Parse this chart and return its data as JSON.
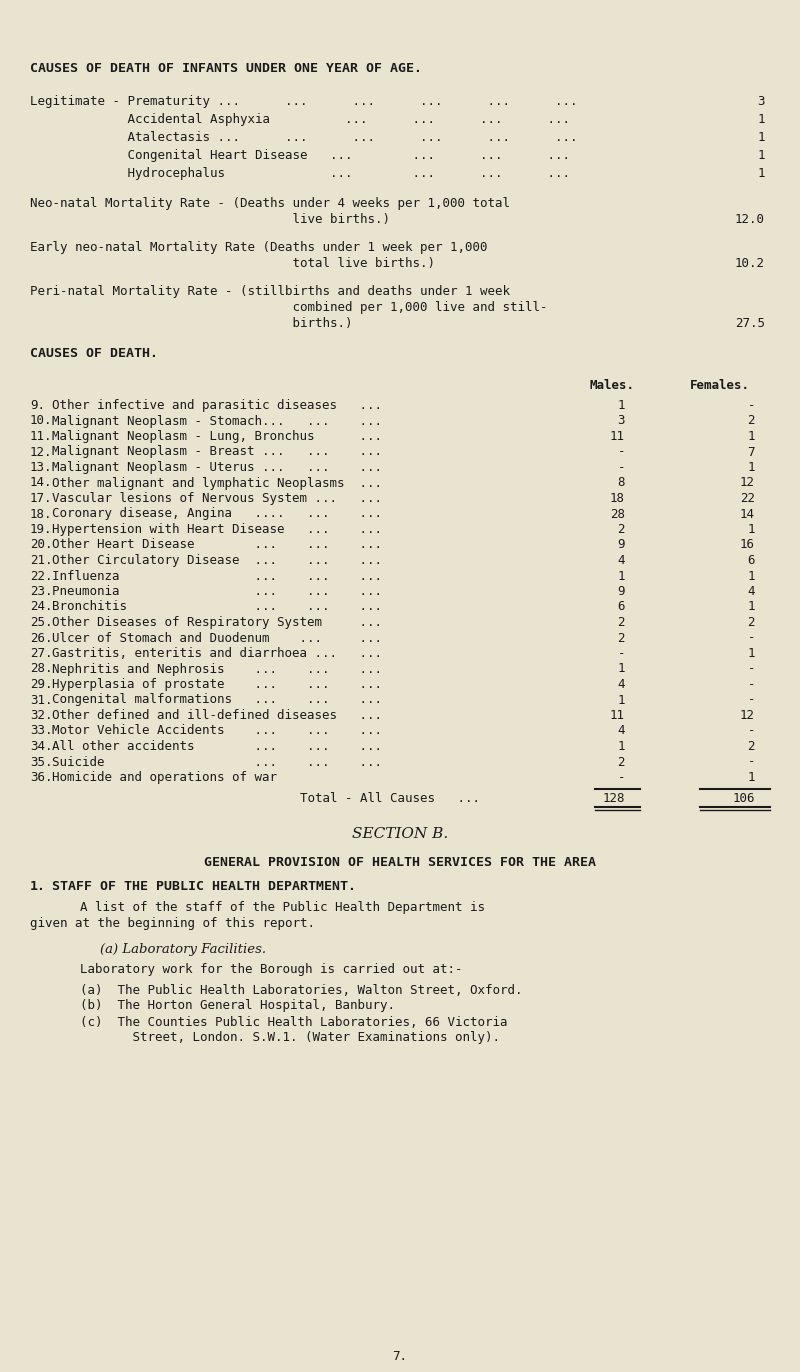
{
  "bg_color": "#e8e4d0",
  "text_color": "#1a1a1a",
  "page_number": "7.",
  "section1_title": "CAUSES OF DEATH OF INFANTS UNDER ONE YEAR OF AGE.",
  "infant_rows": [
    [
      "Legitimate - Prematurity ...      ...      ...      ...      ...      ...",
      "3"
    ],
    [
      "             Accidental Asphyxia          ...      ...      ...      ...",
      "1"
    ],
    [
      "             Atalectasis ...      ...      ...      ...      ...      ...",
      "1"
    ],
    [
      "             Congenital Heart Disease   ...        ...      ...      ...",
      "1"
    ],
    [
      "             Hydrocephalus              ...        ...      ...      ...",
      "1"
    ]
  ],
  "neo_natal_line1": "Neo-natal Mortality Rate - (Deaths under 4 weeks per 1,000 total",
  "neo_natal_line2": "                                   live births.)",
  "neo_natal_value": "12.0",
  "early_neo_line1": "Early neo-natal Mortality Rate (Deaths under 1 week per 1,000",
  "early_neo_line2": "                                   total live births.)",
  "early_neo_value": "10.2",
  "peri_natal_line1": "Peri-natal Mortality Rate - (stillbirths and deaths under 1 week",
  "peri_natal_line2": "                                   combined per 1,000 live and still-",
  "peri_natal_line3": "                                   births.)",
  "peri_natal_value": "27.5",
  "causes_title": "CAUSES OF DEATH.",
  "col_males": "Males.",
  "col_females": "Females.",
  "causes_rows": [
    [
      "9.",
      "Other infective and parasitic diseases   ...",
      "1",
      "-"
    ],
    [
      "10.",
      "Malignant Neoplasm - Stomach...   ...    ...",
      "3",
      "2"
    ],
    [
      "11.",
      "Malignant Neoplasm - Lung, Bronchus      ...",
      "11",
      "1"
    ],
    [
      "12.",
      "Malignant Neoplasm - Breast ...   ...    ...",
      "-",
      "7"
    ],
    [
      "13.",
      "Malignant Neoplasm - Uterus ...   ...    ...",
      "-",
      "1"
    ],
    [
      "14.",
      "Other malignant and lymphatic Neoplasms  ...",
      "8",
      "12"
    ],
    [
      "17.",
      "Vascular lesions of Nervous System ...   ...",
      "18",
      "22"
    ],
    [
      "18.",
      "Coronary disease, Angina   ....   ...    ...",
      "28",
      "14"
    ],
    [
      "19.",
      "Hypertension with Heart Disease   ...    ...",
      "2",
      "1"
    ],
    [
      "20.",
      "Other Heart Disease        ...    ...    ...",
      "9",
      "16"
    ],
    [
      "21.",
      "Other Circulatory Disease  ...    ...    ...",
      "4",
      "6"
    ],
    [
      "22.",
      "Influenza                  ...    ...    ...",
      "1",
      "1"
    ],
    [
      "23.",
      "Pneumonia                  ...    ...    ...",
      "9",
      "4"
    ],
    [
      "24.",
      "Bronchitis                 ...    ...    ...",
      "6",
      "1"
    ],
    [
      "25.",
      "Other Diseases of Respiratory System     ...",
      "2",
      "2"
    ],
    [
      "26.",
      "Ulcer of Stomach and Duodenum    ...     ...",
      "2",
      "-"
    ],
    [
      "27.",
      "Gastritis, enteritis and diarrhoea ...   ...",
      "-",
      "1"
    ],
    [
      "28.",
      "Nephritis and Nephrosis    ...    ...    ...",
      "1",
      "-"
    ],
    [
      "29.",
      "Hyperplasia of prostate    ...    ...    ...",
      "4",
      "-"
    ],
    [
      "31.",
      "Congenital malformations   ...    ...    ...",
      "1",
      "-"
    ],
    [
      "32.",
      "Other defined and ill-defined diseases   ...",
      "11",
      "12"
    ],
    [
      "33.",
      "Motor Vehicle Accidents    ...    ...    ...",
      "4",
      "-"
    ],
    [
      "34.",
      "All other accidents        ...    ...    ...",
      "1",
      "2"
    ],
    [
      "35.",
      "Suicide                    ...    ...    ...",
      "2",
      "-"
    ],
    [
      "36.",
      "Homicide and operations of war           ",
      "-",
      "1"
    ]
  ],
  "total_label": "Total - All Causes   ...",
  "total_males": "128",
  "total_females": "106",
  "section_b_title": "SECTION B.",
  "section_b2_title": "GENERAL PROVISION OF HEALTH SERVICES FOR THE AREA",
  "staff_number": "1.",
  "staff_heading": "STAFF OF THE PUBLIC HEALTH DEPARTMENT.",
  "staff_para_line1": "A list of the staff of the Public Health Department is",
  "staff_para_line2": "given at the beginning of this report.",
  "lab_title": "(a) Laboratory Facilities.",
  "lab_intro": "Laboratory work for the Borough is carried out at:-",
  "lab_items": [
    "(a)  The Public Health Laboratories, Walton Street, Oxford.",
    "(b)  The Horton General Hospital, Banbury.",
    "(c)  The Counties Public Health Laboratories, 66 Victoria",
    "       Street, London. S.W.1. (Water Examinations only)."
  ]
}
